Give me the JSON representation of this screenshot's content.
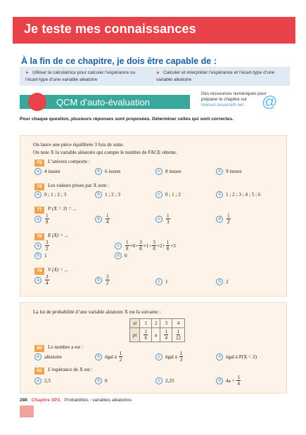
{
  "banner_title": "Je teste mes connaissances",
  "objectives": {
    "title": "À la fin de ce chapitre, je dois être capable de :",
    "items": [
      "Utiliser la calculatrice pour calculer l’espérance ou l’écart-type d’une variable aléatoire",
      "Calculer et interpréter l’espérance et l’écart-type d’une variable aléatoire"
    ]
  },
  "qcm_title": "QCM d’auto-évaluation",
  "resources": {
    "text": "Des ressources numériques pour préparer le chapitre sur",
    "url": "manuel.sesamath.net"
  },
  "instruction": "Pour chaque question, plusieurs réponses sont proposées. Déterminer celles qui sont correctes.",
  "card1": {
    "context": [
      "On lance une pièce équilibrée 3 fois de suite.",
      "On note X la variable aléatoire qui compte le nombre de FACE obtenu."
    ],
    "q75": {
      "num": "75",
      "text": "L’univers comporte :",
      "a": "4 issues",
      "b": "6 issues",
      "c": "8 issues",
      "d": "9 issues"
    },
    "q76": {
      "num": "76",
      "text": "Les valeurs prises par X sont :",
      "a": "0 ; 1 ; 2 ; 3",
      "b": "1 ; 2 ; 3",
      "c": "0 ; 1 ; 2",
      "d": "1 ; 2 ; 3 ; 4 ; 5 ; 6"
    },
    "q77": {
      "num": "77",
      "text": "P (X = 3) = ...",
      "a_n": "1",
      "a_d": "8",
      "b_n": "1",
      "b_d": "4",
      "c_n": "1",
      "c_d": "3",
      "d_n": "1",
      "d_d": "2"
    },
    "q78": {
      "num": "78",
      "text": "E (X) = ...",
      "a_n": "3",
      "a_d": "2",
      "b": "1",
      "d": "0"
    },
    "q79": {
      "num": "79",
      "text": "V (X) = ...",
      "a_n": "3",
      "a_d": "4",
      "b_n": "3",
      "b_d": "2",
      "c": "1",
      "d": "2"
    }
  },
  "card2": {
    "context": "La loi de probabilité d’une variable aléatoire X est la suivante :",
    "table": {
      "xi": "xi",
      "pi": "pi",
      "x": [
        "1",
        "2",
        "3",
        "4"
      ],
      "a": "a"
    },
    "q80": {
      "num": "80",
      "text": "Le nombre a est :",
      "a": "aléatoire",
      "b": "égal à",
      "c": "égal à",
      "d": "égal à P(X = 2)"
    },
    "q81": {
      "num": "81",
      "text": "L’espérance de X est :",
      "a": "2,5",
      "b": "0",
      "c": "2,25",
      "d": "4a +"
    }
  },
  "footer": {
    "page": "288",
    "chapter": "Chapitre SP2.",
    "subtitle": "Probabilités : variables aléatoires"
  },
  "labels": {
    "a": "a",
    "b": "b",
    "c": "c",
    "d": "d"
  }
}
